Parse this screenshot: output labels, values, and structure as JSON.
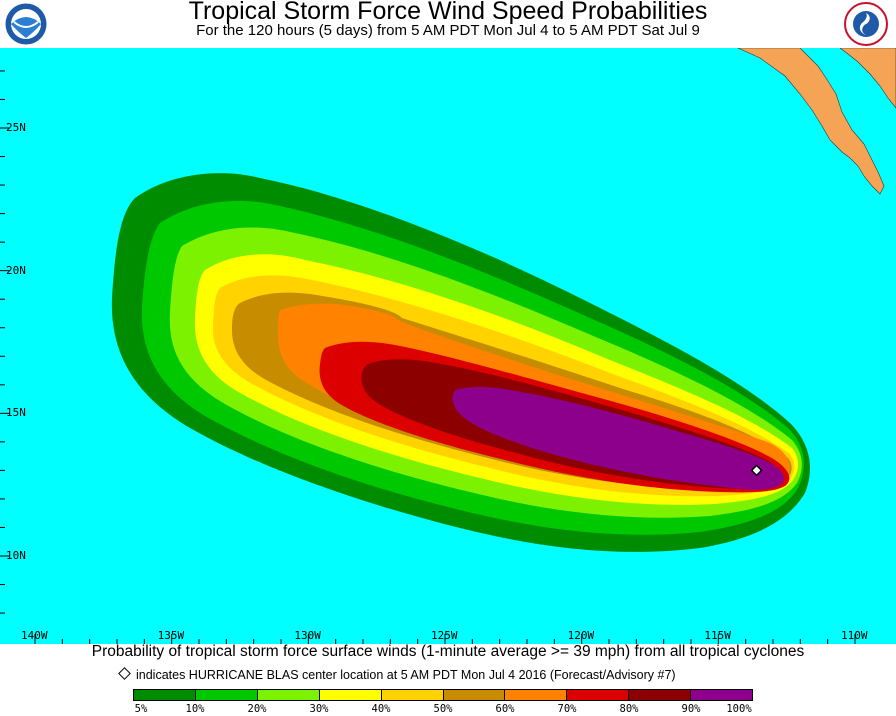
{
  "header": {
    "title": "Tropical Storm Force Wind Speed Probabilities",
    "subtitle": "For the 120 hours (5 days) from 5 AM PDT Mon Jul 4 to 5 AM PDT Sat Jul 9",
    "logos": [
      "noaa-logo",
      "national-weather-service-logo"
    ]
  },
  "map": {
    "ocean_color": "#00ffff",
    "land_color": "#f5a455",
    "lat_range": [
      7.5,
      28.5
    ],
    "lon_range": [
      -141,
      -109
    ],
    "lat_labels": [
      {
        "lat": 25,
        "text": "25N"
      },
      {
        "lat": 20,
        "text": "20N"
      },
      {
        "lat": 15,
        "text": "15N"
      },
      {
        "lat": 10,
        "text": "10N"
      }
    ],
    "lon_labels": [
      {
        "lon": -140,
        "text": "140W"
      },
      {
        "lon": -135,
        "text": "135W"
      },
      {
        "lon": -130,
        "text": "130W"
      },
      {
        "lon": -125,
        "text": "125W"
      },
      {
        "lon": -120,
        "text": "120W"
      },
      {
        "lon": -115,
        "text": "115W"
      },
      {
        "lon": -110,
        "text": "110W"
      }
    ],
    "storm_center": {
      "lat": 13.0,
      "lon": -113.6
    }
  },
  "caption": "Probability of tropical storm force surface winds (1-minute average >= 39 mph) from all tropical cyclones",
  "marker_note": "indicates HURRICANE BLAS center location at 5 AM PDT Mon Jul 4 2016 (Forecast/Advisory #7)",
  "legend": {
    "colors": [
      "#008c00",
      "#00c800",
      "#7df200",
      "#ffff00",
      "#ffd200",
      "#c88c00",
      "#ff8200",
      "#dc0000",
      "#8c0000",
      "#8c008c"
    ],
    "labels": [
      "5%",
      "10%",
      "20%",
      "30%",
      "40%",
      "50%",
      "60%",
      "70%",
      "80%",
      "90%",
      "100%"
    ]
  }
}
